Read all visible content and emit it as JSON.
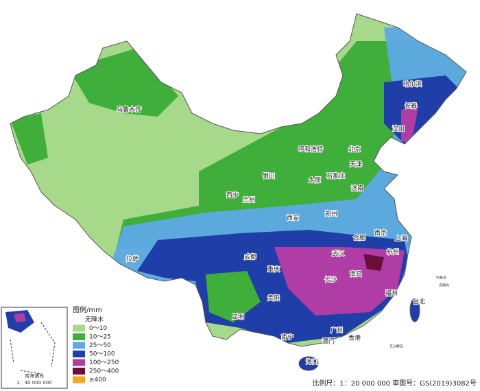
{
  "legend": {
    "title": "图例/mm",
    "items": [
      {
        "label": "无降水",
        "color": "#ffffff"
      },
      {
        "label": "0～10",
        "color": "#a6d98a"
      },
      {
        "label": "10～25",
        "color": "#3fae3a"
      },
      {
        "label": "25～50",
        "color": "#5ea9e6"
      },
      {
        "label": "50～100",
        "color": "#1f3ea8"
      },
      {
        "label": "100～250",
        "color": "#b03ca6"
      },
      {
        "label": "250～400",
        "color": "#6b0f3a"
      },
      {
        "label": "≥400",
        "color": "#f5a623"
      }
    ]
  },
  "cities": [
    "乌鲁木齐",
    "哈尔滨",
    "长春",
    "沈阳",
    "呼和浩特",
    "北京",
    "天津",
    "银川",
    "太原",
    "石家庄",
    "济南",
    "西宁",
    "兰州",
    "郑州",
    "西安",
    "南京",
    "合肥",
    "上海",
    "武汉",
    "成都",
    "杭州",
    "拉萨",
    "重庆",
    "长沙",
    "南昌",
    "贵阳",
    "福州",
    "台北",
    "昆明",
    "南宁",
    "广州",
    "香港",
    "澳门",
    "海口"
  ],
  "islands": [
    "钓鱼岛",
    "赤尾屿",
    "东沙群岛"
  ],
  "inset": {
    "title": "南海诸岛",
    "scale": "1：40 000 000"
  },
  "footer": "比例尺：1：20 000 000  审图号：GS(2019)3082号"
}
